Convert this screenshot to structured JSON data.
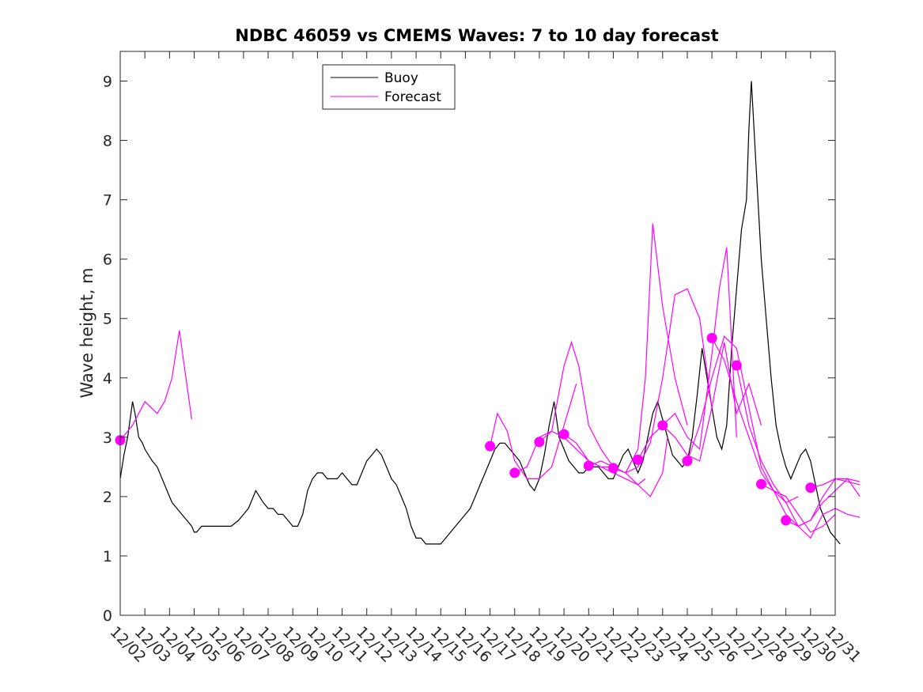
{
  "chart_data": {
    "type": "line",
    "title": "NDBC 46059 vs CMEMS Waves: 7 to 10 day forecast",
    "xlabel": "",
    "ylabel": "Wave height, m",
    "ylim": [
      0,
      9.5
    ],
    "yticks": [
      0,
      1,
      2,
      3,
      4,
      5,
      6,
      7,
      8,
      9
    ],
    "x_start": "12/02",
    "xticks": [
      "12/02",
      "12/03",
      "12/04",
      "12/05",
      "12/06",
      "12/07",
      "12/08",
      "12/09",
      "12/10",
      "12/11",
      "12/12",
      "12/13",
      "12/14",
      "12/15",
      "12/16",
      "12/17",
      "12/18",
      "12/19",
      "12/20",
      "12/21",
      "12/22",
      "12/23",
      "12/24",
      "12/25",
      "12/26",
      "12/27",
      "12/28",
      "12/29",
      "12/30",
      "12/31"
    ],
    "grid": false,
    "legend": {
      "position": "top-center",
      "entries": [
        "Buoy",
        "Forecast"
      ]
    },
    "colors": {
      "buoy": "#000000",
      "forecast": "#ff00ff"
    },
    "buoy": {
      "name": "Buoy",
      "x": [
        0,
        0.15,
        0.3,
        0.5,
        0.6,
        0.75,
        0.9,
        1.0,
        1.15,
        1.3,
        1.5,
        1.7,
        1.9,
        2.1,
        2.3,
        2.5,
        2.7,
        2.9,
        3.0,
        3.1,
        3.3,
        3.5,
        3.7,
        3.9,
        4.2,
        4.5,
        4.8,
        5.0,
        5.2,
        5.5,
        5.8,
        6.0,
        6.2,
        6.4,
        6.6,
        6.8,
        7.0,
        7.2,
        7.4,
        7.6,
        7.8,
        8.0,
        8.2,
        8.4,
        8.6,
        8.8,
        9.0,
        9.2,
        9.4,
        9.6,
        9.8,
        10.0,
        10.2,
        10.4,
        10.6,
        10.8,
        11.0,
        11.2,
        11.4,
        11.6,
        11.8,
        12.0,
        12.2,
        12.4,
        12.6,
        12.8,
        13.0,
        13.2,
        13.4,
        13.6,
        13.8,
        14.0,
        14.2,
        14.4,
        14.6,
        14.8,
        15.0,
        15.2,
        15.4,
        15.6,
        15.8,
        16.0,
        16.2,
        16.4,
        16.6,
        16.8,
        17.0,
        17.2,
        17.4,
        17.6,
        17.8,
        18.0,
        18.2,
        18.4,
        18.6,
        18.8,
        19.0,
        19.2,
        19.4,
        19.6,
        19.8,
        20.0,
        20.2,
        20.4,
        20.6,
        20.8,
        21.0,
        21.2,
        21.4,
        21.6,
        21.8,
        22.0,
        22.2,
        22.4,
        22.6,
        22.8,
        23.0,
        23.2,
        23.4,
        23.6,
        23.8,
        24.0,
        24.2,
        24.4,
        24.6,
        24.8,
        25.0,
        25.2,
        25.4,
        25.5,
        25.6,
        25.8,
        26.0,
        26.2,
        26.4,
        26.6,
        26.8,
        27.0,
        27.2,
        27.4,
        27.6,
        27.8,
        28.0,
        28.2,
        28.4,
        28.6,
        28.8,
        29.0,
        29.2
      ],
      "values": [
        2.3,
        2.7,
        3.0,
        3.6,
        3.4,
        3.0,
        2.9,
        2.8,
        2.7,
        2.6,
        2.5,
        2.3,
        2.1,
        1.9,
        1.8,
        1.7,
        1.6,
        1.5,
        1.4,
        1.4,
        1.5,
        1.5,
        1.5,
        1.5,
        1.5,
        1.5,
        1.6,
        1.7,
        1.8,
        2.1,
        1.9,
        1.8,
        1.8,
        1.7,
        1.7,
        1.6,
        1.5,
        1.5,
        1.7,
        2.1,
        2.3,
        2.4,
        2.4,
        2.3,
        2.3,
        2.3,
        2.4,
        2.3,
        2.2,
        2.2,
        2.4,
        2.6,
        2.7,
        2.8,
        2.7,
        2.5,
        2.3,
        2.2,
        2.0,
        1.8,
        1.5,
        1.3,
        1.3,
        1.2,
        1.2,
        1.2,
        1.2,
        1.3,
        1.4,
        1.5,
        1.6,
        1.7,
        1.8,
        2.0,
        2.2,
        2.4,
        2.6,
        2.8,
        2.9,
        2.9,
        2.8,
        2.7,
        2.6,
        2.4,
        2.2,
        2.1,
        2.3,
        2.7,
        3.2,
        3.6,
        3.0,
        2.8,
        2.6,
        2.5,
        2.4,
        2.4,
        2.5,
        2.5,
        2.5,
        2.4,
        2.3,
        2.3,
        2.5,
        2.7,
        2.8,
        2.6,
        2.4,
        2.6,
        3.0,
        3.4,
        3.6,
        3.3,
        3.0,
        2.7,
        2.6,
        2.5,
        2.6,
        3.0,
        3.7,
        4.5,
        4.0,
        3.5,
        3.0,
        2.8,
        3.2,
        4.5,
        5.5,
        6.5,
        7.0,
        8.2,
        9.0,
        7.5,
        6.0,
        5.0,
        4.0,
        3.2,
        2.8,
        2.5,
        2.3,
        2.5,
        2.7,
        2.8,
        2.6,
        2.2,
        1.8,
        1.6,
        1.4,
        1.3,
        1.2
      ]
    },
    "forecasts": [
      {
        "x": [
          0,
          0.5,
          1.0,
          1.5,
          1.8,
          2.1,
          2.4,
          2.6,
          2.8,
          2.9
        ],
        "values": [
          2.95,
          3.2,
          3.6,
          3.4,
          3.6,
          4.0,
          4.8,
          4.2,
          3.6,
          3.3
        ]
      },
      {
        "x": [
          15.0,
          15.3,
          15.7,
          16.0,
          16.5,
          17.0,
          17.5,
          18.0,
          18.5
        ],
        "values": [
          2.85,
          3.4,
          3.1,
          2.6,
          2.3,
          2.3,
          2.5,
          3.2,
          3.9
        ]
      },
      {
        "x": [
          16.0,
          16.5,
          17.0,
          17.5,
          18.0,
          18.3,
          18.6,
          19.0,
          19.5,
          20.0
        ],
        "values": [
          2.4,
          2.5,
          3.0,
          3.1,
          4.2,
          4.6,
          4.2,
          3.2,
          2.8,
          2.5
        ]
      },
      {
        "x": [
          17.0,
          17.5,
          18.0,
          18.5,
          19.0,
          19.5,
          20.0,
          20.5,
          21.0,
          21.3
        ],
        "values": [
          2.92,
          3.1,
          3.0,
          2.8,
          2.6,
          2.5,
          2.4,
          2.3,
          2.2,
          2.3
        ]
      },
      {
        "x": [
          18.0,
          18.5,
          19.0,
          19.5,
          20.0,
          20.5,
          21.0,
          21.5,
          22.0,
          22.2
        ],
        "values": [
          3.05,
          2.9,
          2.6,
          2.5,
          2.5,
          2.4,
          2.2,
          2.0,
          2.4,
          3.0
        ]
      },
      {
        "x": [
          19.0,
          19.5,
          20.0,
          20.5,
          21.0,
          21.3,
          21.6,
          22.0,
          22.5,
          23.0
        ],
        "values": [
          2.52,
          2.6,
          2.5,
          2.4,
          2.8,
          4.0,
          6.6,
          5.2,
          4.0,
          3.2
        ]
      },
      {
        "x": [
          20.0,
          20.5,
          21.0,
          21.5,
          22.0,
          22.5,
          23.0,
          23.5,
          24.0
        ],
        "values": [
          2.48,
          2.4,
          2.5,
          2.9,
          4.0,
          5.4,
          5.5,
          5.0,
          3.5
        ]
      },
      {
        "x": [
          21.0,
          21.5,
          22.0,
          22.5,
          23.0,
          23.5,
          24.0,
          24.3,
          24.6,
          25.0
        ],
        "values": [
          2.62,
          3.0,
          3.2,
          3.4,
          3.0,
          2.8,
          4.4,
          5.5,
          6.2,
          3.0
        ]
      },
      {
        "x": [
          22.0,
          22.5,
          23.0,
          23.5,
          24.0,
          24.5,
          25.0,
          25.5,
          26.0
        ],
        "values": [
          3.2,
          3.0,
          2.7,
          2.6,
          3.5,
          4.6,
          3.4,
          3.9,
          3.2
        ]
      },
      {
        "x": [
          23.0,
          23.5,
          24.0,
          24.5,
          25.0,
          25.5,
          26.0,
          26.5,
          27.0,
          27.5
        ],
        "values": [
          2.6,
          3.2,
          4.0,
          4.7,
          4.5,
          3.5,
          2.5,
          2.1,
          1.9,
          2.0
        ]
      },
      {
        "x": [
          24.0,
          24.5,
          25.0,
          25.5,
          26.0,
          26.5,
          27.0,
          27.5,
          28.0,
          28.5,
          29.0
        ],
        "values": [
          4.67,
          4.3,
          3.6,
          3.0,
          2.4,
          2.1,
          2.0,
          1.7,
          1.4,
          1.5,
          1.7
        ]
      },
      {
        "x": [
          25.0,
          25.5,
          26.0,
          26.5,
          27.0,
          27.5,
          28.0,
          28.5,
          29.0,
          29.5,
          30.0
        ],
        "values": [
          4.21,
          3.2,
          2.6,
          2.2,
          1.9,
          1.5,
          1.3,
          1.7,
          1.8,
          1.7,
          1.65
        ]
      },
      {
        "x": [
          26.0,
          26.5,
          27.0,
          27.5,
          28.0,
          28.5,
          29.0,
          29.5,
          30.0
        ],
        "values": [
          2.21,
          2.1,
          1.7,
          1.5,
          1.6,
          2.0,
          2.3,
          2.3,
          2.25
        ]
      },
      {
        "x": [
          27.0,
          27.5,
          28.0,
          28.5,
          29.0,
          29.5,
          30.0
        ],
        "values": [
          1.6,
          1.5,
          1.6,
          1.9,
          2.1,
          2.3,
          2.0
        ]
      },
      {
        "x": [
          28.0,
          28.5,
          29.0,
          29.5,
          30.0
        ],
        "values": [
          2.15,
          2.2,
          2.3,
          2.25,
          2.2
        ]
      }
    ],
    "markers": {
      "x": [
        0,
        15.0,
        16.0,
        17.0,
        18.0,
        19.0,
        20.0,
        21.0,
        22.0,
        23.0,
        24.0,
        25.0,
        26.0,
        27.0,
        28.0
      ],
      "values": [
        2.95,
        2.85,
        2.4,
        2.92,
        3.05,
        2.52,
        2.48,
        2.62,
        3.2,
        2.6,
        4.67,
        4.21,
        2.21,
        1.6,
        2.15
      ]
    }
  }
}
